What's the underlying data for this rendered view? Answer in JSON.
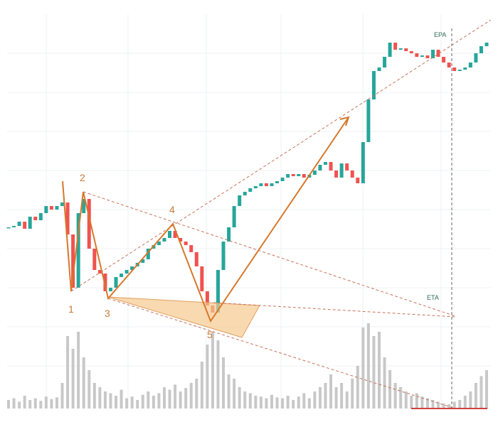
{
  "chart_data": {
    "type": "candlestick",
    "closes": [
      36,
      36.4,
      37.6,
      35.6,
      39,
      38,
      40,
      42,
      41,
      42,
      43,
      34,
      19,
      40,
      44,
      30,
      24,
      23,
      18,
      19,
      22,
      23,
      24,
      25,
      26,
      27,
      30,
      31,
      32,
      33,
      35,
      33,
      32,
      31,
      29,
      25,
      18,
      14,
      12,
      24,
      32,
      36,
      42,
      45,
      46,
      47,
      47.6,
      48.4,
      47.6,
      48.4,
      49,
      50,
      51,
      50.4,
      51,
      50,
      50.8,
      52,
      53.6,
      54.4,
      52,
      50,
      54,
      52,
      50,
      48.4,
      60,
      72,
      80,
      81,
      84,
      88,
      86,
      86.4,
      85.6,
      85,
      84,
      84.4,
      83.6,
      86,
      84,
      82.4,
      81,
      80,
      80.4,
      81,
      82.4,
      85,
      87,
      88
    ],
    "volume": [
      10,
      12,
      8,
      15,
      10,
      12,
      9,
      14,
      11,
      13,
      30,
      85,
      70,
      90,
      60,
      45,
      30,
      25,
      20,
      18,
      15,
      22,
      12,
      14,
      10,
      16,
      20,
      15,
      18,
      25,
      22,
      28,
      20,
      24,
      30,
      35,
      55,
      75,
      90,
      80,
      60,
      40,
      35,
      25,
      20,
      18,
      15,
      14,
      12,
      16,
      13,
      12,
      15,
      10,
      14,
      18,
      12,
      20,
      25,
      30,
      40,
      25,
      30,
      20,
      35,
      50,
      95,
      100,
      85,
      90,
      60,
      45,
      30,
      25,
      20,
      15,
      18,
      14,
      12,
      10,
      8,
      6,
      5,
      8,
      10,
      15,
      20,
      30,
      38,
      45
    ],
    "ylim": [
      0,
      100
    ],
    "volume_lim": [
      0,
      100
    ],
    "up_color": "#26a69a",
    "down_color": "#ef5350",
    "volume_color": "#c8c8c8",
    "annotations": {
      "points": [
        "1",
        "2",
        "3",
        "4",
        "5"
      ],
      "epa": "EPA",
      "eta": "ETA"
    }
  }
}
